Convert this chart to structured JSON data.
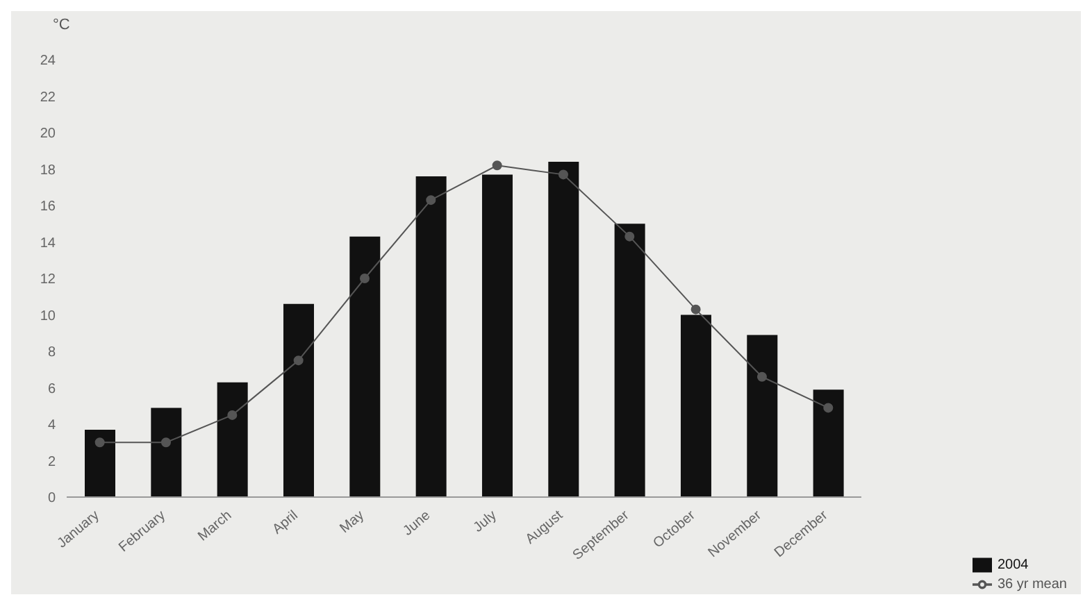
{
  "chart_data": {
    "type": "bar",
    "ylabel": "°C",
    "categories": [
      "January",
      "February",
      "March",
      "April",
      "May",
      "June",
      "July",
      "August",
      "September",
      "October",
      "November",
      "December"
    ],
    "series": [
      {
        "name": "2004",
        "color": "#111111",
        "values": [
          3.7,
          4.9,
          6.3,
          10.6,
          14.3,
          17.6,
          17.7,
          18.4,
          15.0,
          10.0,
          8.9,
          5.9
        ]
      },
      {
        "name": "36 yr mean",
        "type": "line",
        "color": "#555555",
        "marker": "circle",
        "values": [
          3.0,
          3.0,
          4.5,
          7.5,
          12.0,
          16.3,
          18.2,
          17.7,
          14.3,
          10.3,
          6.6,
          4.9
        ]
      }
    ],
    "ylim": [
      0,
      24
    ],
    "yticks": [
      0,
      2,
      4,
      6,
      8,
      10,
      12,
      14,
      16,
      18,
      20,
      22,
      24
    ],
    "grid": false,
    "legend": "bottom right"
  }
}
